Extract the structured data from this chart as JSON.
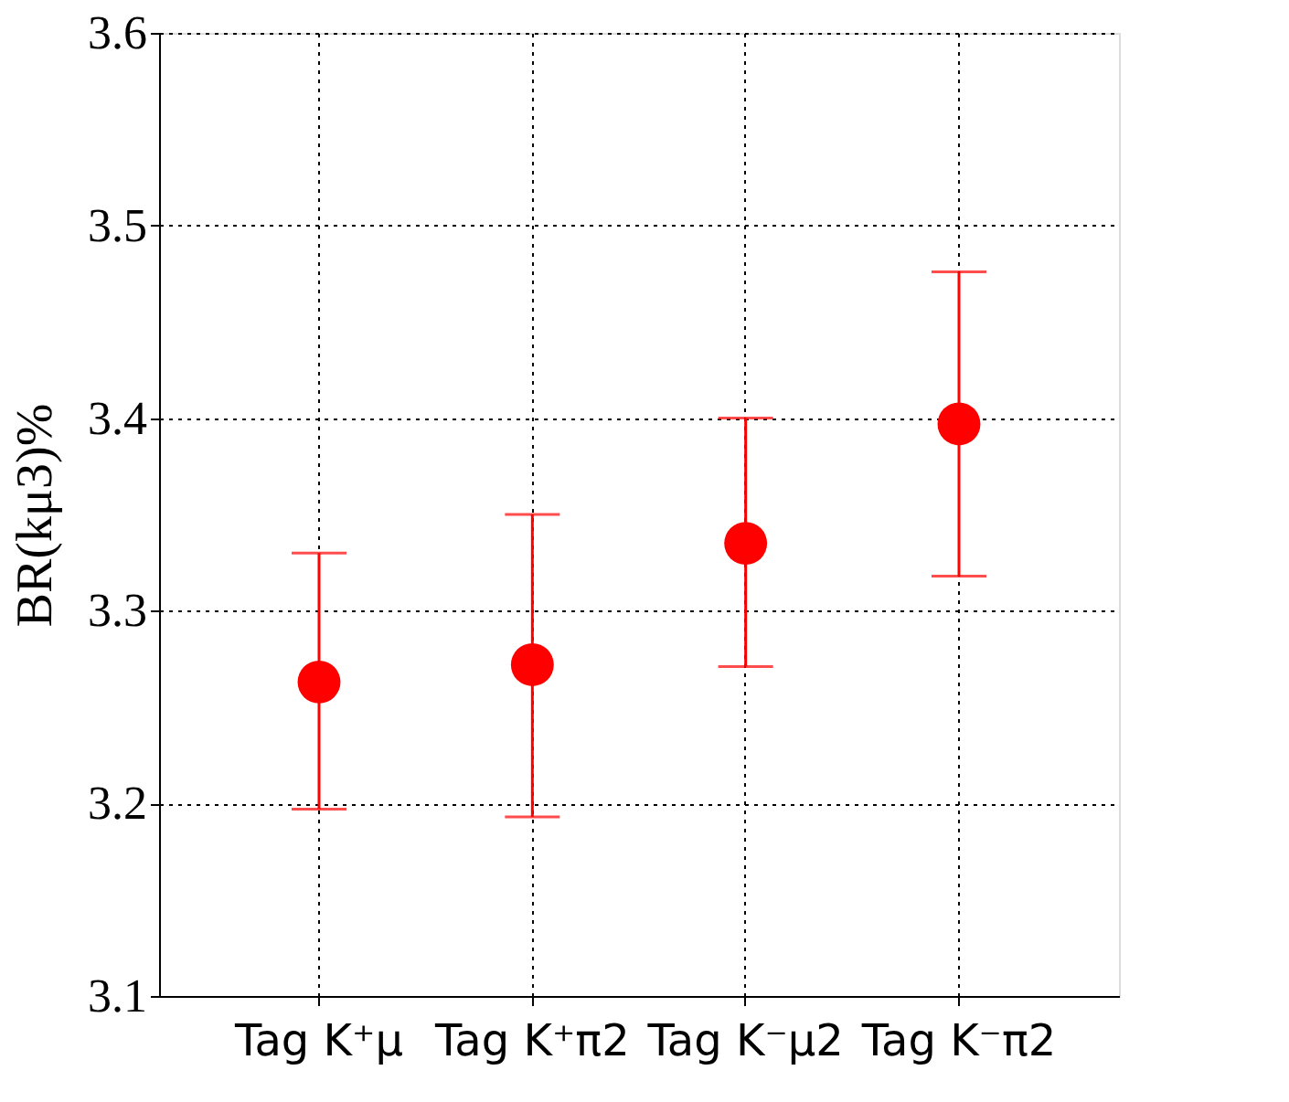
{
  "chart_data": {
    "type": "scatter",
    "ylabel": "BR(kμ3)%",
    "categories": [
      "Tag K⁺μ",
      "Tag K⁺π2",
      "Tag K⁻μ2",
      "Tag K⁻π2"
    ],
    "series": [
      {
        "color": "#ff0000",
        "values": [
          3.263,
          3.272,
          3.335,
          3.397
        ],
        "errors": [
          [
            3.197,
            3.33
          ],
          [
            3.193,
            3.35
          ],
          [
            3.271,
            3.4
          ],
          [
            3.318,
            3.476
          ]
        ]
      }
    ],
    "ylim": [
      3.1,
      3.6
    ],
    "yticks": [
      3.1,
      3.2,
      3.3,
      3.4,
      3.5,
      3.6
    ],
    "grid": true,
    "marker": "circle"
  }
}
